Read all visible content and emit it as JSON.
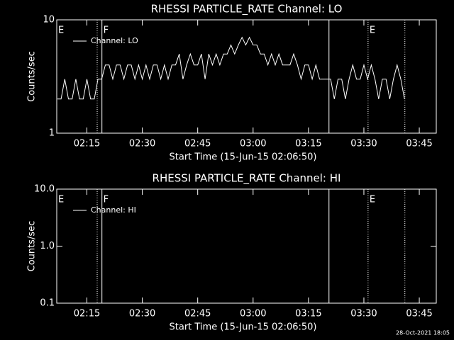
{
  "chart_data": [
    {
      "type": "line",
      "title": "RHESSI PARTICLE_RATE Channel: LO",
      "xlabel": "Start Time (15-Jun-15 02:06:50)",
      "ylabel": "Counts/sec",
      "ylog": true,
      "ylim": [
        1,
        10
      ],
      "yticks": [
        1,
        10
      ],
      "xlim": [
        "02:06:50",
        "03:49:36"
      ],
      "xticks": [
        "02:15",
        "02:30",
        "02:45",
        "03:00",
        "03:15",
        "03:30",
        "03:45"
      ],
      "x": [
        "02:07",
        "02:08",
        "02:09",
        "02:10",
        "02:11",
        "02:12",
        "02:13",
        "02:14",
        "02:15",
        "02:16",
        "02:17",
        "02:18",
        "02:19",
        "02:20",
        "02:21",
        "02:22",
        "02:23",
        "02:24",
        "02:25",
        "02:26",
        "02:27",
        "02:28",
        "02:29",
        "02:30",
        "02:31",
        "02:32",
        "02:33",
        "02:34",
        "02:35",
        "02:36",
        "02:37",
        "02:38",
        "02:39",
        "02:40",
        "02:41",
        "02:42",
        "02:43",
        "02:44",
        "02:45",
        "02:46",
        "02:47",
        "02:48",
        "02:49",
        "02:50",
        "02:51",
        "02:52",
        "02:53",
        "02:54",
        "02:55",
        "02:56",
        "02:57",
        "02:58",
        "02:59",
        "03:00",
        "03:01",
        "03:02",
        "03:03",
        "03:04",
        "03:05",
        "03:06",
        "03:07",
        "03:08",
        "03:09",
        "03:10",
        "03:11",
        "03:12",
        "03:13",
        "03:14",
        "03:15",
        "03:16",
        "03:17",
        "03:18",
        "03:19",
        "03:20",
        "03:21",
        "03:22",
        "03:23",
        "03:24",
        "03:25",
        "03:26",
        "03:27",
        "03:28",
        "03:29",
        "03:30",
        "03:31",
        "03:32",
        "03:33",
        "03:34",
        "03:35",
        "03:36",
        "03:37",
        "03:38",
        "03:39",
        "03:40",
        "03:41"
      ],
      "series": [
        {
          "name": "Channel: LO",
          "color": "#ffffff",
          "values": [
            2,
            2,
            3,
            2,
            2,
            3,
            2,
            2,
            3,
            2,
            2,
            3,
            3,
            4,
            4,
            3,
            4,
            4,
            3,
            4,
            4,
            3,
            4,
            3,
            4,
            3,
            4,
            4,
            3,
            4,
            3,
            4,
            4,
            5,
            3,
            4,
            5,
            4,
            4,
            5,
            3,
            5,
            4,
            5,
            4,
            5,
            5,
            6,
            5,
            6,
            7,
            6,
            7,
            6,
            6,
            5,
            5,
            4,
            5,
            4,
            5,
            4,
            4,
            4,
            5,
            4,
            3,
            4,
            4,
            3,
            4,
            3,
            3,
            3,
            3,
            2,
            3,
            3,
            2,
            3,
            4,
            3,
            3,
            4,
            3,
            4,
            3,
            2,
            3,
            3,
            2,
            3,
            4,
            3,
            2
          ]
        }
      ],
      "legend": "upper left",
      "markers": [
        {
          "x": "02:17:47",
          "style": "dotted"
        },
        {
          "x": "02:19:04",
          "style": "solid"
        },
        {
          "x": "03:20:33",
          "style": "solid"
        },
        {
          "x": "03:31:08",
          "style": "dotted"
        },
        {
          "x": "03:41:06",
          "style": "dotted"
        }
      ],
      "flags": [
        {
          "x": "02:06:50",
          "label": "E"
        },
        {
          "x": "02:19:04",
          "label": "F"
        },
        {
          "x": "03:31:08",
          "label": "E"
        }
      ]
    },
    {
      "type": "line",
      "title": "RHESSI PARTICLE_RATE Channel: HI",
      "xlabel": "Start Time (15-Jun-15 02:06:50)",
      "ylabel": "Counts/sec",
      "ylog": true,
      "ylim": [
        0.1,
        10
      ],
      "yticks": [
        {
          "value": 0.1,
          "label": "0.1"
        },
        {
          "value": 1,
          "label": "1.0"
        },
        {
          "value": 10,
          "label": "10.0"
        }
      ],
      "xlim": [
        "02:06:50",
        "03:49:36"
      ],
      "xticks": [
        "02:15",
        "02:30",
        "02:45",
        "03:00",
        "03:15",
        "03:30",
        "03:45"
      ],
      "x": [],
      "series": [
        {
          "name": "Channel: HI",
          "color": "#ffffff",
          "values": []
        }
      ],
      "legend": "upper left",
      "markers": [
        {
          "x": "02:17:47",
          "style": "dotted"
        },
        {
          "x": "02:19:04",
          "style": "solid"
        },
        {
          "x": "03:20:33",
          "style": "solid"
        },
        {
          "x": "03:31:08",
          "style": "dotted"
        },
        {
          "x": "03:41:06",
          "style": "dotted"
        }
      ],
      "flags": [
        {
          "x": "02:06:50",
          "label": "E"
        },
        {
          "x": "02:19:04",
          "label": "F"
        },
        {
          "x": "03:31:08",
          "label": "E"
        }
      ]
    }
  ],
  "footer": "28-Oct-2021 18:05"
}
